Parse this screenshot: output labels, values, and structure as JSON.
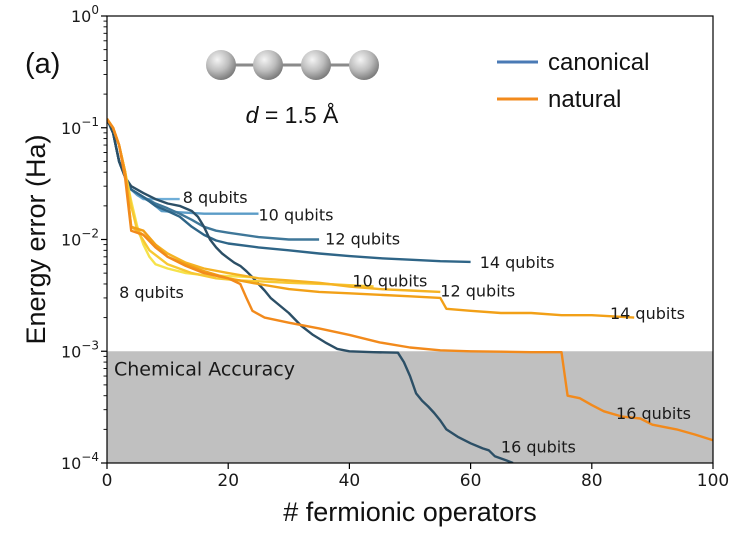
{
  "chart_data": {
    "type": "line",
    "panel_label": "(a)",
    "xlabel": "# fermionic operators",
    "ylabel": "Energy error (Ha)",
    "xlim": [
      0,
      100
    ],
    "ylim_log10": [
      -4,
      0
    ],
    "yscale": "log",
    "x_ticks": [
      0,
      20,
      40,
      60,
      80,
      100
    ],
    "x_tick_labels": [
      "0",
      "20",
      "40",
      "60",
      "80",
      "100"
    ],
    "y_ticks": [
      {
        "exp": 0,
        "base": "10",
        "sup": "0"
      },
      {
        "exp": -1,
        "base": "10",
        "sup": "−1"
      },
      {
        "exp": -2,
        "base": "10",
        "sup": "−2"
      },
      {
        "exp": -3,
        "base": "10",
        "sup": "−3"
      },
      {
        "exp": -4,
        "base": "10",
        "sup": "−4"
      }
    ],
    "molecule_caption": {
      "symbol": "d",
      "rest": " = 1.5 Å",
      "atoms": 4
    },
    "legend": [
      {
        "label": "canonical",
        "color": "#4a7ab5"
      },
      {
        "label": "natural",
        "color": "#f28a1c"
      }
    ],
    "chemical_accuracy": {
      "label": "Chemical Accuracy",
      "threshold": 0.001,
      "fill": "#c0c0c0"
    },
    "series": [
      {
        "name": "canonical 8 qubits",
        "group": "canonical",
        "color": "#6faed8",
        "points": [
          [
            0,
            0.12
          ],
          [
            1,
            0.09
          ],
          [
            2,
            0.05
          ],
          [
            3,
            0.036
          ],
          [
            4,
            0.028
          ],
          [
            5,
            0.025
          ],
          [
            6,
            0.023
          ],
          [
            7,
            0.023
          ],
          [
            9,
            0.023
          ],
          [
            12,
            0.023
          ]
        ]
      },
      {
        "name": "canonical 10 qubits",
        "group": "canonical",
        "color": "#5b9cc7",
        "points": [
          [
            0,
            0.12
          ],
          [
            1,
            0.09
          ],
          [
            2,
            0.05
          ],
          [
            3,
            0.036
          ],
          [
            4,
            0.028
          ],
          [
            5,
            0.025
          ],
          [
            7,
            0.022
          ],
          [
            8,
            0.02
          ],
          [
            9,
            0.018
          ],
          [
            12,
            0.0175
          ],
          [
            16,
            0.017
          ],
          [
            25,
            0.017
          ]
        ]
      },
      {
        "name": "canonical 12 qubits",
        "group": "canonical",
        "color": "#3f7799",
        "points": [
          [
            0,
            0.12
          ],
          [
            1,
            0.09
          ],
          [
            2,
            0.05
          ],
          [
            3,
            0.036
          ],
          [
            4,
            0.028
          ],
          [
            6,
            0.024
          ],
          [
            8,
            0.021
          ],
          [
            10,
            0.019
          ],
          [
            12,
            0.017
          ],
          [
            14,
            0.015
          ],
          [
            16,
            0.013
          ],
          [
            18,
            0.012
          ],
          [
            20,
            0.0115
          ],
          [
            25,
            0.0105
          ],
          [
            30,
            0.01
          ],
          [
            35,
            0.01
          ]
        ]
      },
      {
        "name": "canonical 14 qubits",
        "group": "canonical",
        "color": "#2f6587",
        "points": [
          [
            0,
            0.12
          ],
          [
            1,
            0.09
          ],
          [
            2,
            0.05
          ],
          [
            3,
            0.036
          ],
          [
            4,
            0.028
          ],
          [
            6,
            0.024
          ],
          [
            8,
            0.02
          ],
          [
            10,
            0.018
          ],
          [
            12,
            0.016
          ],
          [
            14,
            0.013
          ],
          [
            16,
            0.011
          ],
          [
            18,
            0.0098
          ],
          [
            20,
            0.0092
          ],
          [
            25,
            0.0085
          ],
          [
            30,
            0.008
          ],
          [
            35,
            0.0075
          ],
          [
            40,
            0.0071
          ],
          [
            45,
            0.0068
          ],
          [
            50,
            0.0066
          ],
          [
            55,
            0.0064
          ],
          [
            60,
            0.0063
          ]
        ]
      },
      {
        "name": "canonical 16 qubits",
        "group": "canonical",
        "color": "#2c4f66",
        "points": [
          [
            0,
            0.12
          ],
          [
            1,
            0.09
          ],
          [
            2,
            0.05
          ],
          [
            3,
            0.036
          ],
          [
            4,
            0.03
          ],
          [
            6,
            0.026
          ],
          [
            8,
            0.023
          ],
          [
            10,
            0.021
          ],
          [
            12,
            0.02
          ],
          [
            14,
            0.018
          ],
          [
            15,
            0.016
          ],
          [
            16,
            0.013
          ],
          [
            17,
            0.01
          ],
          [
            18,
            0.0085
          ],
          [
            19,
            0.0075
          ],
          [
            20,
            0.0068
          ],
          [
            21,
            0.0062
          ],
          [
            22,
            0.0058
          ],
          [
            23,
            0.0052
          ],
          [
            24,
            0.0046
          ],
          [
            25,
            0.004
          ],
          [
            26,
            0.0035
          ],
          [
            27,
            0.003
          ],
          [
            28,
            0.0027
          ],
          [
            30,
            0.0022
          ],
          [
            32,
            0.0017
          ],
          [
            34,
            0.0014
          ],
          [
            36,
            0.0012
          ],
          [
            38,
            0.00105
          ],
          [
            40,
            0.001
          ],
          [
            44,
            0.00098
          ],
          [
            48,
            0.00097
          ],
          [
            49,
            0.0008
          ],
          [
            50,
            0.0006
          ],
          [
            51,
            0.00042
          ],
          [
            52,
            0.00036
          ],
          [
            53,
            0.00032
          ],
          [
            54,
            0.00028
          ],
          [
            55,
            0.00024
          ],
          [
            56,
            0.0002
          ],
          [
            58,
            0.00017
          ],
          [
            60,
            0.00015
          ],
          [
            62,
            0.000135
          ],
          [
            63,
            0.00013
          ],
          [
            64,
            0.000115
          ],
          [
            66,
            0.000105
          ],
          [
            67,
            0.0001
          ]
        ]
      },
      {
        "name": "natural 8 qubits",
        "group": "natural",
        "color": "#f6e24a",
        "points": [
          [
            0,
            0.12
          ],
          [
            1,
            0.1
          ],
          [
            2,
            0.07
          ],
          [
            3,
            0.04
          ],
          [
            4,
            0.022
          ],
          [
            5,
            0.013
          ],
          [
            6,
            0.009
          ],
          [
            7,
            0.007
          ],
          [
            8,
            0.006
          ],
          [
            10,
            0.0055
          ],
          [
            13,
            0.005
          ],
          [
            16,
            0.0048
          ],
          [
            20,
            0.0047
          ],
          [
            24,
            0.0046
          ]
        ]
      },
      {
        "name": "natural 10 qubits",
        "group": "natural",
        "color": "#f7c832",
        "points": [
          [
            0,
            0.12
          ],
          [
            1,
            0.1
          ],
          [
            2,
            0.07
          ],
          [
            3,
            0.04
          ],
          [
            4,
            0.02
          ],
          [
            5,
            0.012
          ],
          [
            7,
            0.008
          ],
          [
            10,
            0.006
          ],
          [
            14,
            0.005
          ],
          [
            18,
            0.0045
          ],
          [
            22,
            0.0043
          ],
          [
            26,
            0.0042
          ],
          [
            30,
            0.0041
          ],
          [
            36,
            0.004
          ],
          [
            40,
            0.0039
          ],
          [
            44,
            0.0038
          ]
        ]
      },
      {
        "name": "natural 12 qubits",
        "group": "natural",
        "color": "#f5b323",
        "points": [
          [
            0,
            0.12
          ],
          [
            1,
            0.1
          ],
          [
            2,
            0.07
          ],
          [
            3,
            0.04
          ],
          [
            4,
            0.013
          ],
          [
            6,
            0.011
          ],
          [
            8,
            0.009
          ],
          [
            10,
            0.0075
          ],
          [
            13,
            0.0062
          ],
          [
            16,
            0.0055
          ],
          [
            20,
            0.005
          ],
          [
            25,
            0.0045
          ],
          [
            30,
            0.0043
          ],
          [
            35,
            0.0041
          ],
          [
            40,
            0.0038
          ],
          [
            45,
            0.0036
          ],
          [
            50,
            0.0035
          ],
          [
            55,
            0.0034
          ]
        ]
      },
      {
        "name": "natural 14 qubits",
        "group": "natural",
        "color": "#f2a017",
        "points": [
          [
            0,
            0.12
          ],
          [
            1,
            0.1
          ],
          [
            2,
            0.07
          ],
          [
            3,
            0.04
          ],
          [
            4,
            0.013
          ],
          [
            6,
            0.012
          ],
          [
            8,
            0.009
          ],
          [
            10,
            0.007
          ],
          [
            13,
            0.006
          ],
          [
            16,
            0.0052
          ],
          [
            20,
            0.0045
          ],
          [
            25,
            0.004
          ],
          [
            30,
            0.0036
          ],
          [
            35,
            0.0034
          ],
          [
            40,
            0.0033
          ],
          [
            45,
            0.0032
          ],
          [
            50,
            0.0031
          ],
          [
            55,
            0.003
          ],
          [
            56,
            0.0024
          ],
          [
            60,
            0.0023
          ],
          [
            65,
            0.0022
          ],
          [
            70,
            0.0022
          ],
          [
            75,
            0.0021
          ],
          [
            80,
            0.0021
          ],
          [
            87,
            0.002
          ]
        ]
      },
      {
        "name": "natural 16 qubits",
        "group": "natural",
        "color": "#f28a1c",
        "points": [
          [
            0,
            0.12
          ],
          [
            1,
            0.1
          ],
          [
            2,
            0.07
          ],
          [
            3,
            0.035
          ],
          [
            4,
            0.012
          ],
          [
            6,
            0.011
          ],
          [
            8,
            0.0085
          ],
          [
            10,
            0.007
          ],
          [
            13,
            0.0058
          ],
          [
            16,
            0.005
          ],
          [
            20,
            0.0045
          ],
          [
            22,
            0.004
          ],
          [
            23,
            0.003
          ],
          [
            24,
            0.0023
          ],
          [
            26,
            0.002
          ],
          [
            30,
            0.0018
          ],
          [
            35,
            0.0016
          ],
          [
            40,
            0.0014
          ],
          [
            45,
            0.0012
          ],
          [
            50,
            0.00108
          ],
          [
            55,
            0.00102
          ],
          [
            60,
            0.001
          ],
          [
            65,
            0.00099
          ],
          [
            70,
            0.00098
          ],
          [
            75,
            0.00098
          ],
          [
            76,
            0.0004
          ],
          [
            78,
            0.00038
          ],
          [
            80,
            0.00033
          ],
          [
            82,
            0.00029
          ],
          [
            85,
            0.00026
          ],
          [
            88,
            0.00025
          ],
          [
            90,
            0.00022
          ],
          [
            94,
            0.0002
          ],
          [
            97,
            0.00018
          ],
          [
            100,
            0.00016
          ]
        ]
      }
    ],
    "annotations": [
      {
        "text": "8 qubits",
        "series": "canonical 8 qubits",
        "x": 12.5,
        "y": 0.024
      },
      {
        "text": "10 qubits",
        "series": "canonical 10 qubits",
        "x": 25,
        "y": 0.0168
      },
      {
        "text": "12 qubits",
        "series": "canonical 12 qubits",
        "x": 36,
        "y": 0.0102
      },
      {
        "text": "14 qubits",
        "series": "canonical 14 qubits",
        "x": 61.5,
        "y": 0.0063
      },
      {
        "text": "16 qubits",
        "series": "canonical 16 qubits",
        "x": 65,
        "y": 0.00014
      },
      {
        "text": "8 qubits",
        "series": "natural 8 qubits",
        "x": 2,
        "y": 0.0034
      },
      {
        "text": "10 qubits",
        "series": "natural 10 qubits",
        "x": 40.5,
        "y": 0.0043
      },
      {
        "text": "12 qubits",
        "series": "natural 12 qubits",
        "x": 55,
        "y": 0.0035
      },
      {
        "text": "14 qubits",
        "series": "natural 14 qubits",
        "x": 83,
        "y": 0.0022
      },
      {
        "text": "16 qubits",
        "series": "natural 16 qubits",
        "x": 84,
        "y": 0.00028
      }
    ]
  }
}
